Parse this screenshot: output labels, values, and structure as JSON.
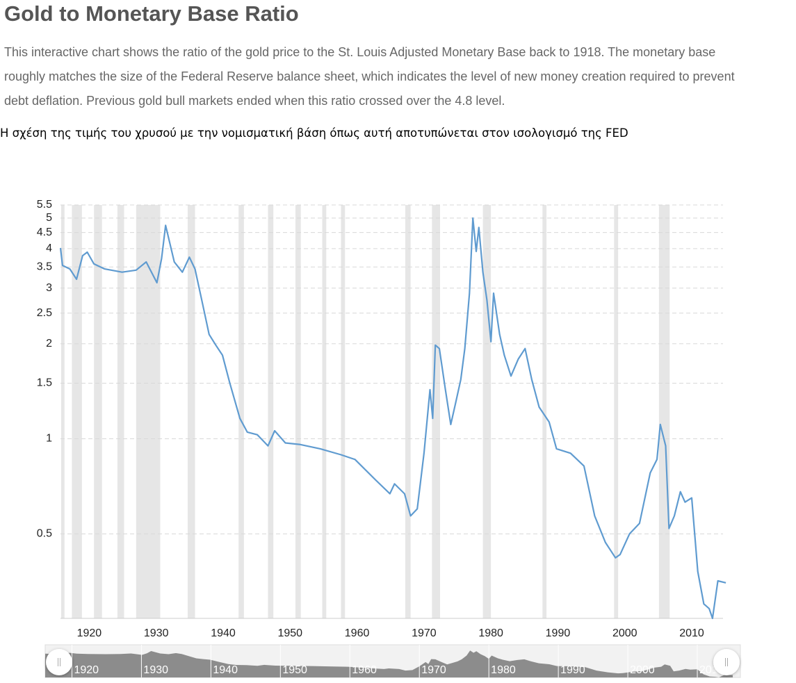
{
  "title": "Gold to Monetary Base Ratio",
  "description": "This interactive chart shows the ratio of the gold price to the St. Louis Adjusted Monetary Base back to 1918. The monetary base roughly matches the size of the Federal Reserve balance sheet, which indicates the level of new money creation required to prevent debt deflation. Previous gold bull markets ended when this ratio crossed over the 4.8 level.",
  "note": "Η σχέση της τιμής του χρυσού με την νομισματική βάση όπως αυτή αποτυπώνεται στον ισολογισμό της FED",
  "chart_data": {
    "type": "line",
    "log_scale": true,
    "grid": true,
    "xlim": [
      1915.7,
      2015.5
    ],
    "ylim": [
      0.27,
      5.5
    ],
    "xticks": [
      1920,
      1930,
      1940,
      1950,
      1960,
      1970,
      1980,
      1990,
      2000,
      2010
    ],
    "yticks": [
      0.5,
      1,
      1.5,
      2,
      2.5,
      3,
      3.5,
      4,
      4.5,
      5,
      5.5
    ],
    "recession_color": "#e6e6e6",
    "recessions": [
      [
        1915.8,
        1916.3
      ],
      [
        1917.4,
        1918.9
      ],
      [
        1920.7,
        1921.9
      ],
      [
        1924.2,
        1925.2
      ],
      [
        1927.0,
        1930.6
      ],
      [
        1934.7,
        1935.8
      ],
      [
        1942.3,
        1943.1
      ],
      [
        1946.7,
        1947.5
      ],
      [
        1950.8,
        1951.6
      ],
      [
        1954.8,
        1955.4
      ],
      [
        1957.6,
        1958.2
      ],
      [
        1967.2,
        1968.0
      ],
      [
        1971.2,
        1972.4
      ],
      [
        1978.8,
        1980.0
      ],
      [
        1987.7,
        1988.3
      ],
      [
        1998.4,
        1999.0
      ],
      [
        2005.1,
        2006.7
      ]
    ],
    "series": [
      {
        "color": "#5f9bd0",
        "x": [
          1915.7,
          1916.0,
          1917.1,
          1918.1,
          1919.0,
          1919.7,
          1920.7,
          1922.3,
          1924.9,
          1927.0,
          1928.5,
          1930.1,
          1930.8,
          1931.4,
          1932.7,
          1933.9,
          1934.95,
          1935.8,
          1936.8,
          1937.9,
          1938.9,
          1939.9,
          1941.0,
          1942.5,
          1943.6,
          1945.1,
          1946.7,
          1947.7,
          1949.3,
          1951.4,
          1954.5,
          1957.6,
          1959.7,
          1962.8,
          1964.9,
          1965.6,
          1967.1,
          1968.0,
          1969.0,
          1970.0,
          1970.9,
          1971.3,
          1971.7,
          1972.3,
          1973.2,
          1974.0,
          1974.7,
          1975.5,
          1976.1,
          1976.8,
          1977.3,
          1977.8,
          1978.2,
          1978.8,
          1979.4,
          1980.0,
          1980.4,
          1981.3,
          1982.0,
          1983.0,
          1984.1,
          1985.1,
          1986.1,
          1987.2,
          1988.7,
          1989.8,
          1991.9,
          1993.9,
          1995.5,
          1997.1,
          1998.6,
          1999.3,
          2000.7,
          2002.2,
          2003.8,
          2004.8,
          2005.3,
          2006.1,
          2006.6,
          2007.4,
          2008.3,
          2009.0,
          2010.0,
          2010.9,
          2011.8,
          2012.6,
          2013.1,
          2013.9,
          2015.1
        ],
        "values": [
          4.02,
          3.54,
          3.45,
          3.2,
          3.8,
          3.9,
          3.58,
          3.45,
          3.37,
          3.42,
          3.63,
          3.12,
          3.72,
          4.74,
          3.63,
          3.37,
          3.76,
          3.45,
          2.75,
          2.14,
          1.98,
          1.84,
          1.5,
          1.16,
          1.05,
          1.03,
          0.95,
          1.06,
          0.97,
          0.96,
          0.93,
          0.89,
          0.86,
          0.74,
          0.67,
          0.72,
          0.67,
          0.57,
          0.6,
          0.9,
          1.43,
          1.16,
          1.98,
          1.93,
          1.43,
          1.11,
          1.29,
          1.54,
          1.93,
          2.89,
          5.0,
          3.92,
          4.67,
          3.37,
          2.75,
          2.03,
          2.89,
          2.14,
          1.84,
          1.58,
          1.79,
          1.93,
          1.54,
          1.26,
          1.13,
          0.93,
          0.9,
          0.82,
          0.57,
          0.47,
          0.42,
          0.43,
          0.5,
          0.54,
          0.78,
          0.86,
          1.11,
          0.95,
          0.52,
          0.57,
          0.68,
          0.63,
          0.65,
          0.38,
          0.3,
          0.29,
          0.27,
          0.355,
          0.35
        ]
      }
    ]
  }
}
